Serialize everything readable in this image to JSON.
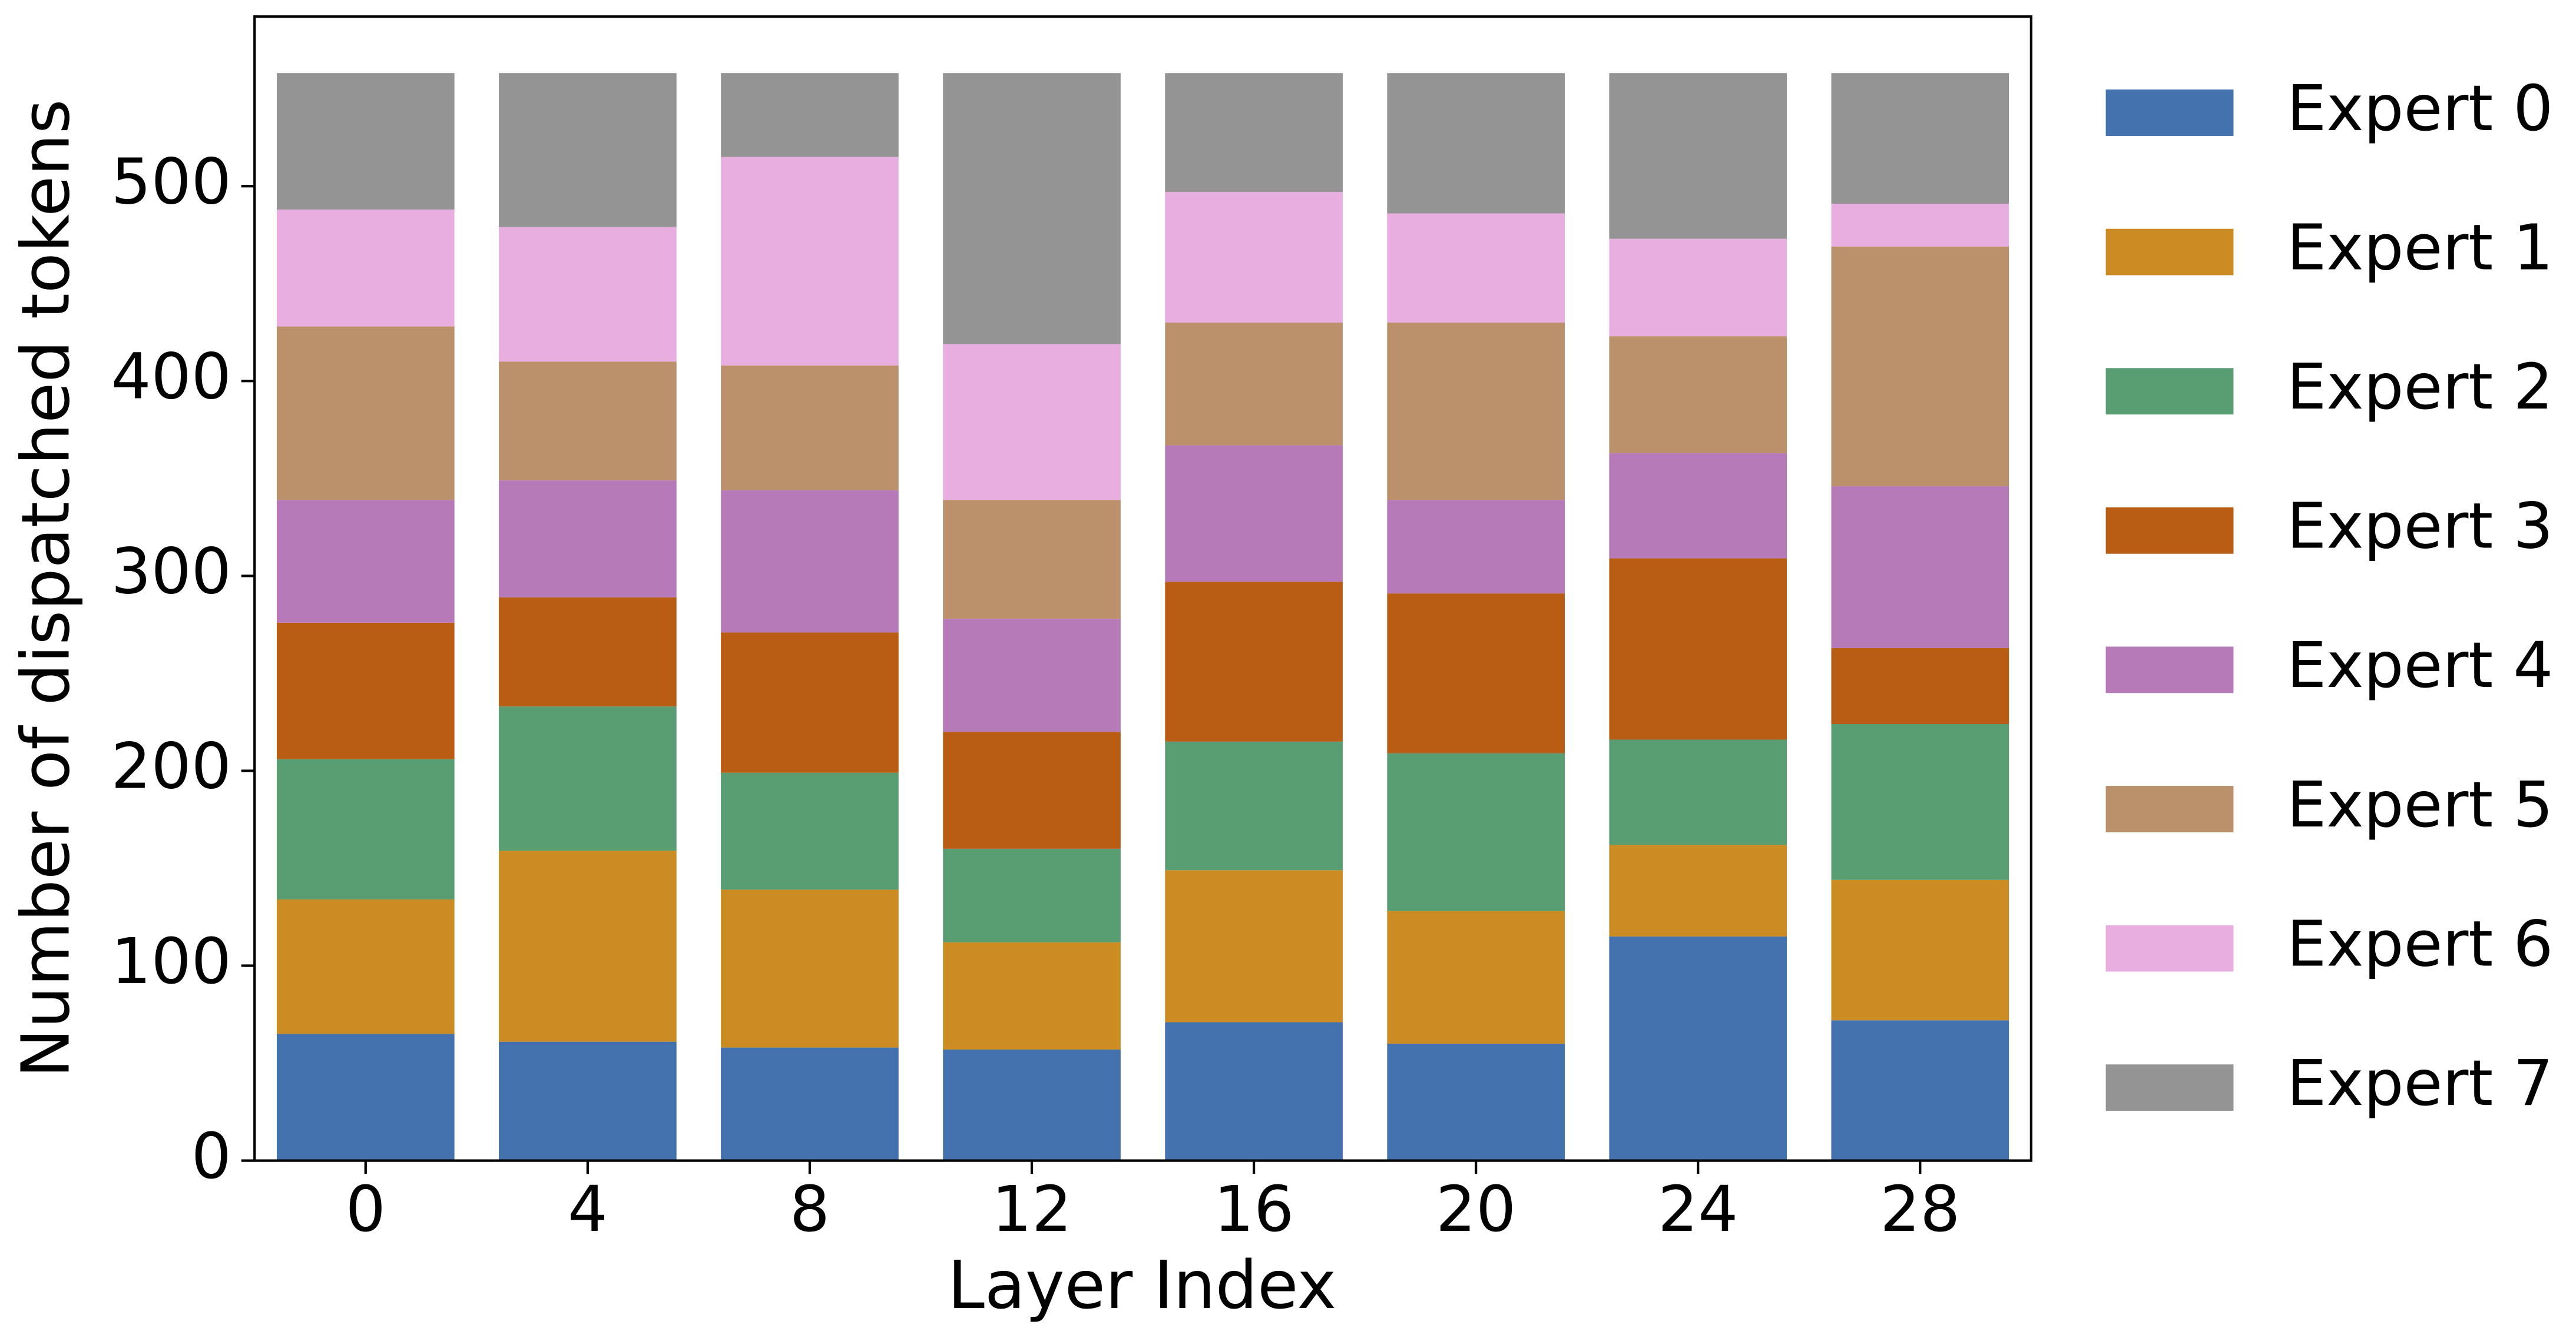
{
  "chart_data": {
    "type": "stacked_bar",
    "x_label": "Layer Index",
    "y_label": "Number of dispatched tokens",
    "categories": [
      "0",
      "4",
      "8",
      "12",
      "16",
      "20",
      "24",
      "28"
    ],
    "series": [
      {
        "name": "Expert 0",
        "color": "#4372ae",
        "values": [
          65,
          61,
          58,
          57,
          71,
          60,
          115,
          72
        ]
      },
      {
        "name": "Expert 1",
        "color": "#cb8c24",
        "values": [
          69,
          98,
          81,
          55,
          78,
          68,
          47,
          72
        ]
      },
      {
        "name": "Expert 2",
        "color": "#599e73",
        "values": [
          72,
          74,
          60,
          48,
          66,
          81,
          54,
          80
        ]
      },
      {
        "name": "Expert 3",
        "color": "#b95c14",
        "values": [
          70,
          56,
          72,
          60,
          82,
          82,
          93,
          39
        ]
      },
      {
        "name": "Expert 4",
        "color": "#b77ab8",
        "values": [
          63,
          60,
          73,
          58,
          70,
          48,
          54,
          83
        ]
      },
      {
        "name": "Expert 5",
        "color": "#ba916a",
        "values": [
          89,
          61,
          64,
          61,
          63,
          91,
          60,
          123
        ]
      },
      {
        "name": "Expert 6",
        "color": "#e8aee0",
        "values": [
          60,
          69,
          107,
          80,
          67,
          56,
          50,
          22
        ]
      },
      {
        "name": "Expert 7",
        "color": "#949494",
        "values": [
          70,
          79,
          43,
          139,
          61,
          72,
          85,
          67
        ]
      }
    ],
    "ylim": [
      0,
      587
    ],
    "yticks": [
      0,
      100,
      200,
      300,
      400,
      500
    ],
    "legend": "outside-right"
  }
}
